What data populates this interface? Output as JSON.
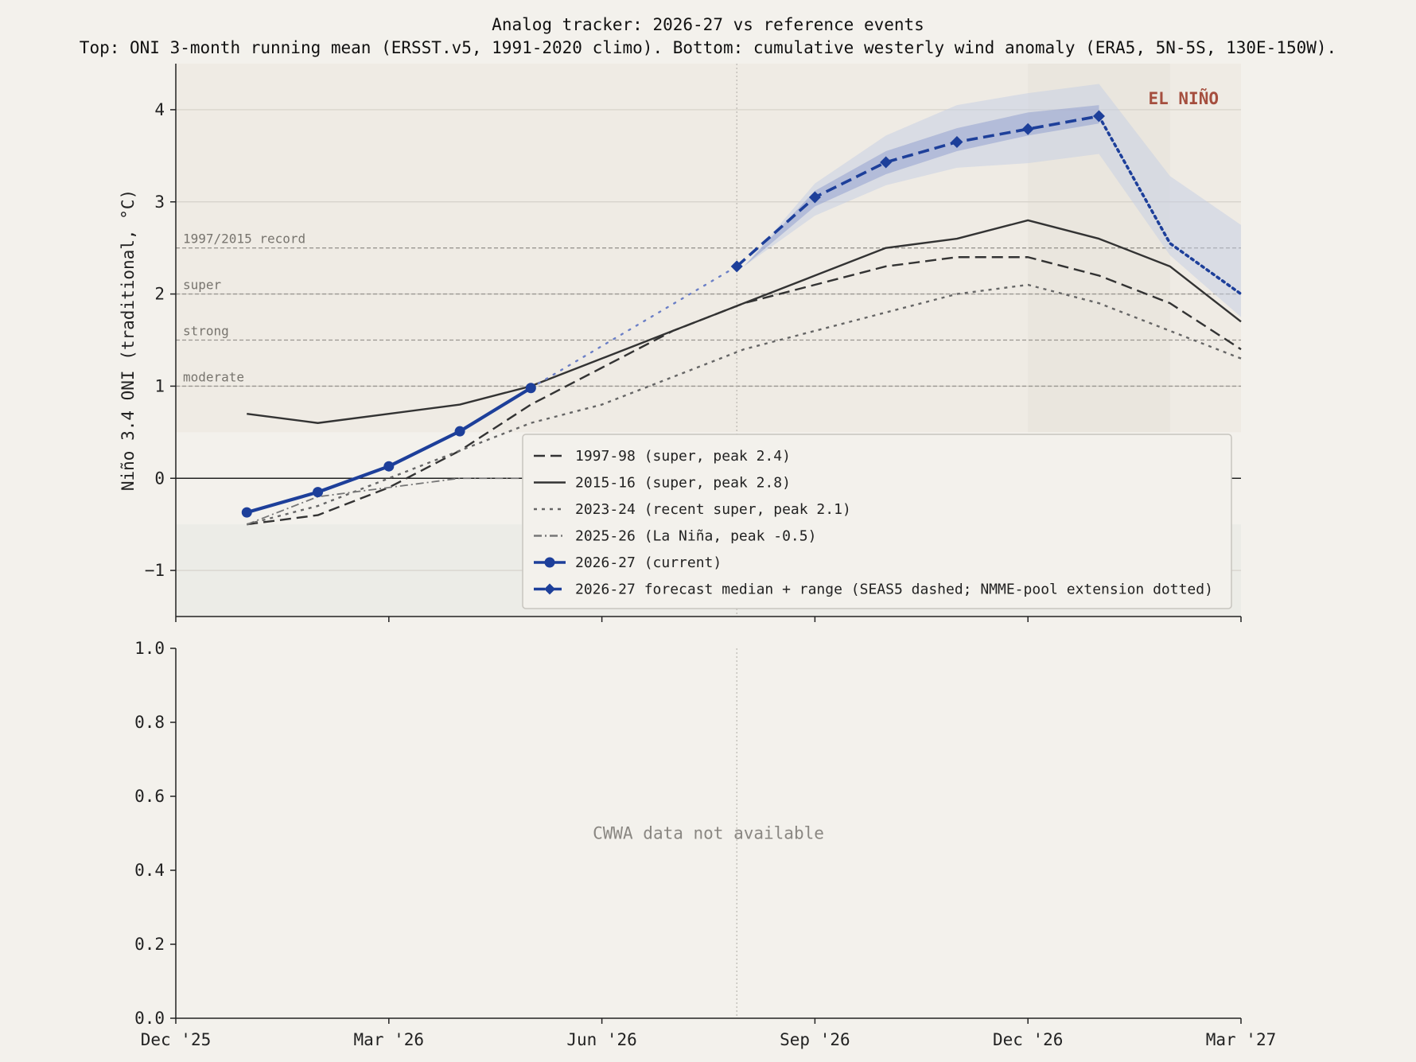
{
  "title": "Analog tracker: 2026-27 vs reference events",
  "subtitle": "Top: ONI 3-month running mean (ERSST.v5, 1991-2020 climo). Bottom: cumulative westerly wind anomaly (ERA5, 5N-5S, 130E-150W).",
  "chart_data": [
    {
      "type": "line",
      "panel": "top",
      "ylabel": "Niño 3.4 ONI (traditional, °C)",
      "ylim": [
        -1.5,
        4.5
      ],
      "y_ticks": [
        -1,
        0,
        1,
        2,
        3,
        4
      ],
      "y_tick_labels": [
        "−1",
        "0",
        "1",
        "2",
        "3",
        "4"
      ],
      "x_domain": [
        "Dec '25",
        "Mar '27"
      ],
      "x_ticks": [
        "Dec '25",
        "Mar '26",
        "Jun '26",
        "Sep '26",
        "Dec '26",
        "Mar '27"
      ],
      "grid": true,
      "phase_label": "EL NIÑO",
      "thresholds": [
        {
          "label": "1997/2015 record",
          "value": 2.5
        },
        {
          "label": "super",
          "value": 2.0
        },
        {
          "label": "strong",
          "value": 1.5
        },
        {
          "label": "moderate",
          "value": 1.0
        }
      ],
      "nino_band": [
        0.5,
        4.5
      ],
      "nina_band": [
        -1.5,
        -0.5
      ],
      "forecast_start": "Aug '26",
      "peak_window": [
        "Dec '26",
        "Feb '27"
      ],
      "x": [
        "Jan",
        "Feb",
        "Mar",
        "Apr",
        "May",
        "Jun",
        "Jul",
        "Aug",
        "Sep",
        "Oct",
        "Nov",
        "Dec",
        "Jan",
        "Feb",
        "Mar"
      ],
      "series": [
        {
          "name": "1997-98 (super, peak 2.4)",
          "style": "dashed",
          "color": "#333333",
          "values": [
            -0.5,
            -0.4,
            -0.1,
            0.3,
            0.8,
            1.2,
            1.6,
            1.9,
            2.1,
            2.3,
            2.4,
            2.4,
            2.2,
            1.9,
            1.4
          ]
        },
        {
          "name": "2015-16 (super, peak 2.8)",
          "style": "solid",
          "color": "#333333",
          "values": [
            0.7,
            0.6,
            0.7,
            0.8,
            1.0,
            1.3,
            1.6,
            1.9,
            2.2,
            2.5,
            2.6,
            2.8,
            2.6,
            2.3,
            1.7
          ]
        },
        {
          "name": "2023-24 (recent super, peak 2.1)",
          "style": "dotted",
          "color": "#666666",
          "values": [
            -0.5,
            -0.3,
            0.0,
            0.3,
            0.6,
            0.8,
            1.1,
            1.4,
            1.6,
            1.8,
            2.0,
            2.1,
            1.9,
            1.6,
            1.3
          ]
        },
        {
          "name": "2025-26 (La Niña, peak -0.5)",
          "style": "dashdot",
          "color": "#777777",
          "values": [
            -0.5,
            -0.2,
            -0.1,
            0.0,
            0.0,
            null,
            null,
            null,
            null,
            null,
            null,
            null,
            null,
            null,
            null
          ]
        },
        {
          "name": "2026-27 (current)",
          "style": "solid-marker",
          "color": "#1d3f9a",
          "values": [
            -0.37,
            -0.15,
            0.13,
            0.51,
            0.98,
            null,
            null,
            null,
            null,
            null,
            null,
            null,
            null,
            null,
            null
          ]
        },
        {
          "name": "2026-27 forecast median + range (SEAS5 dashed; NMME-pool extension dotted)",
          "style": "dashed-diamond",
          "color": "#1d3f9a",
          "values": [
            null,
            null,
            null,
            null,
            null,
            null,
            null,
            2.3,
            3.05,
            3.43,
            3.65,
            3.79,
            3.93,
            2.55,
            2.0
          ],
          "bridge": [
            0.98,
            2.3
          ],
          "inner_low": [
            null,
            null,
            null,
            null,
            null,
            null,
            null,
            2.3,
            2.95,
            3.3,
            3.55,
            3.72,
            3.85,
            null,
            null
          ],
          "inner_high": [
            null,
            null,
            null,
            null,
            null,
            null,
            null,
            2.3,
            3.12,
            3.55,
            3.8,
            3.97,
            4.05,
            null,
            null
          ],
          "outer_low": [
            null,
            null,
            null,
            null,
            null,
            null,
            null,
            2.3,
            2.85,
            3.18,
            3.37,
            3.42,
            3.52,
            2.42,
            1.75
          ],
          "outer_high": [
            null,
            null,
            null,
            null,
            null,
            null,
            null,
            2.3,
            3.2,
            3.72,
            4.05,
            4.18,
            4.28,
            3.28,
            2.75
          ]
        }
      ]
    },
    {
      "type": "line",
      "panel": "bottom",
      "ylim": [
        0,
        1
      ],
      "y_tick_labels": [
        "0.0",
        "0.2",
        "0.4",
        "0.6",
        "0.8",
        "1.0"
      ],
      "x_tick_labels": [
        "Dec '25",
        "Mar '26",
        "Jun '26",
        "Sep '26",
        "Dec '26",
        "Mar '27"
      ],
      "note": "CWWA data not available",
      "series": []
    }
  ]
}
